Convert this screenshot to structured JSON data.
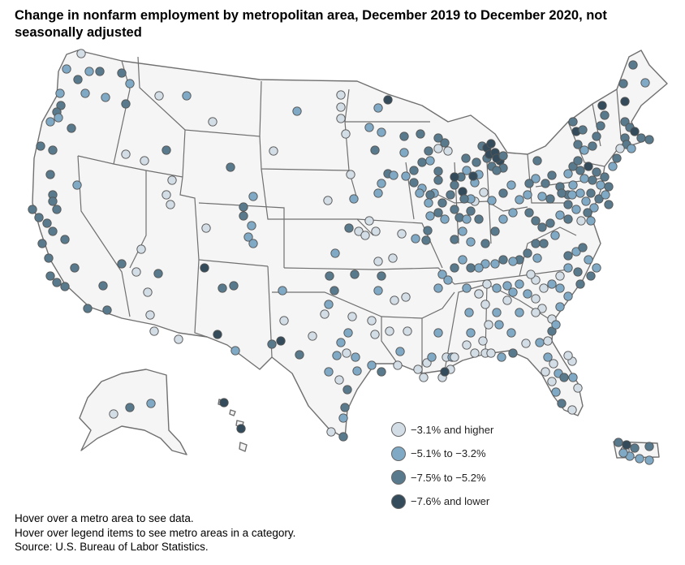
{
  "title": "Change in nonfarm employment by metropolitan area, December 2019 to December 2020, not seasonally adjusted",
  "legend": [
    {
      "label": "−3.1% and higher",
      "color": "#d3dde5"
    },
    {
      "label": "−5.1% to −3.2%",
      "color": "#7fa9c4"
    },
    {
      "label": "−7.5% to −5.2%",
      "color": "#587a8c"
    },
    {
      "label": "−7.6% and lower",
      "color": "#334b5a"
    }
  ],
  "notes": {
    "hover_metro": "Hover over a metro area to see data.",
    "hover_legend": "Hover over legend items to see metro areas in a category.",
    "source": "Source: U.S. Bureau of Labor Statistics."
  }
}
